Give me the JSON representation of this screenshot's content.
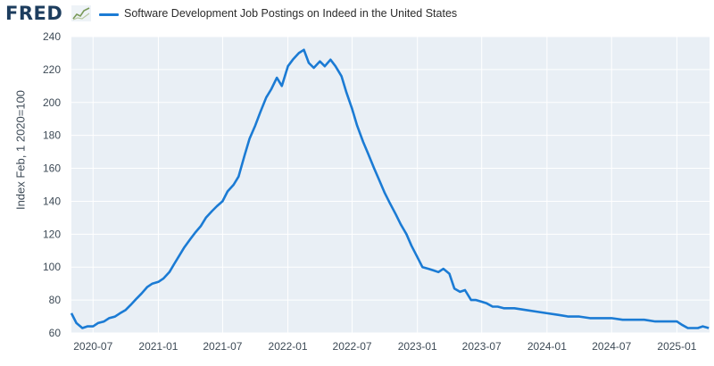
{
  "header": {
    "logo_text": "FRED",
    "legend_label": "Software Development Job Postings on Indeed in the United States"
  },
  "colors": {
    "series": "#1b7bd4",
    "plot_background": "#e9eff5",
    "gridline": "#ffffff",
    "logo": "#1d3d5e"
  },
  "icons": [
    "fred-logo-graph-icon"
  ],
  "chart_data": {
    "type": "line",
    "title": "",
    "xlabel": "",
    "ylabel": "Index Feb, 1 2020=100",
    "grid": true,
    "legend_position": "top-left",
    "ylim": [
      60,
      240
    ],
    "xlim": [
      "2020-05-01",
      "2025-04-03"
    ],
    "yticks": [
      60,
      80,
      100,
      120,
      140,
      160,
      180,
      200,
      220,
      240
    ],
    "xticks": [
      "2020-07",
      "2021-01",
      "2021-07",
      "2022-01",
      "2022-07",
      "2023-01",
      "2023-07",
      "2024-01",
      "2024-07",
      "2025-01"
    ],
    "series": [
      {
        "name": "Software Development Job Postings on Indeed in the United States",
        "x": [
          "2020-05-01",
          "2020-05-15",
          "2020-06-01",
          "2020-06-15",
          "2020-07-01",
          "2020-07-15",
          "2020-08-01",
          "2020-08-15",
          "2020-09-01",
          "2020-09-15",
          "2020-10-01",
          "2020-10-15",
          "2020-11-01",
          "2020-11-15",
          "2020-12-01",
          "2020-12-15",
          "2021-01-01",
          "2021-01-15",
          "2021-02-01",
          "2021-02-15",
          "2021-03-01",
          "2021-03-15",
          "2021-04-01",
          "2021-04-15",
          "2021-05-01",
          "2021-05-15",
          "2021-06-01",
          "2021-06-15",
          "2021-07-01",
          "2021-07-15",
          "2021-08-01",
          "2021-08-15",
          "2021-09-01",
          "2021-09-15",
          "2021-10-01",
          "2021-10-15",
          "2021-11-01",
          "2021-11-15",
          "2021-12-01",
          "2021-12-15",
          "2022-01-01",
          "2022-01-15",
          "2022-02-01",
          "2022-02-15",
          "2022-03-01",
          "2022-03-15",
          "2022-04-01",
          "2022-04-15",
          "2022-05-01",
          "2022-05-15",
          "2022-06-01",
          "2022-06-15",
          "2022-07-01",
          "2022-07-15",
          "2022-08-01",
          "2022-08-15",
          "2022-09-01",
          "2022-09-15",
          "2022-10-01",
          "2022-10-15",
          "2022-11-01",
          "2022-11-15",
          "2022-12-01",
          "2022-12-15",
          "2023-01-01",
          "2023-01-15",
          "2023-02-01",
          "2023-02-15",
          "2023-03-01",
          "2023-03-15",
          "2023-04-01",
          "2023-04-15",
          "2023-05-01",
          "2023-05-15",
          "2023-06-01",
          "2023-06-15",
          "2023-07-01",
          "2023-07-15",
          "2023-08-01",
          "2023-08-15",
          "2023-09-01",
          "2023-10-01",
          "2023-11-01",
          "2023-12-01",
          "2024-01-01",
          "2024-02-01",
          "2024-03-01",
          "2024-04-01",
          "2024-05-01",
          "2024-06-01",
          "2024-07-01",
          "2024-08-01",
          "2024-09-01",
          "2024-10-01",
          "2024-11-01",
          "2024-12-01",
          "2025-01-01",
          "2025-01-15",
          "2025-02-01",
          "2025-02-15",
          "2025-03-01",
          "2025-03-15",
          "2025-04-01"
        ],
        "y": [
          72,
          66,
          63,
          64,
          64,
          66,
          67,
          69,
          70,
          72,
          74,
          77,
          81,
          84,
          88,
          90,
          91,
          93,
          97,
          102,
          107,
          112,
          117,
          121,
          125,
          130,
          134,
          137,
          140,
          146,
          150,
          155,
          168,
          178,
          186,
          194,
          203,
          208,
          215,
          210,
          222,
          226,
          230,
          232,
          224,
          221,
          225,
          222,
          226,
          222,
          216,
          206,
          196,
          186,
          176,
          169,
          160,
          153,
          145,
          139,
          132,
          126,
          120,
          113,
          106,
          100,
          99,
          98,
          97,
          99,
          96,
          87,
          85,
          86,
          80,
          80,
          79,
          78,
          76,
          76,
          75,
          75,
          74,
          73,
          72,
          71,
          70,
          70,
          69,
          69,
          69,
          68,
          68,
          68,
          67,
          67,
          67,
          65,
          63,
          63,
          63,
          64,
          63
        ]
      }
    ]
  }
}
